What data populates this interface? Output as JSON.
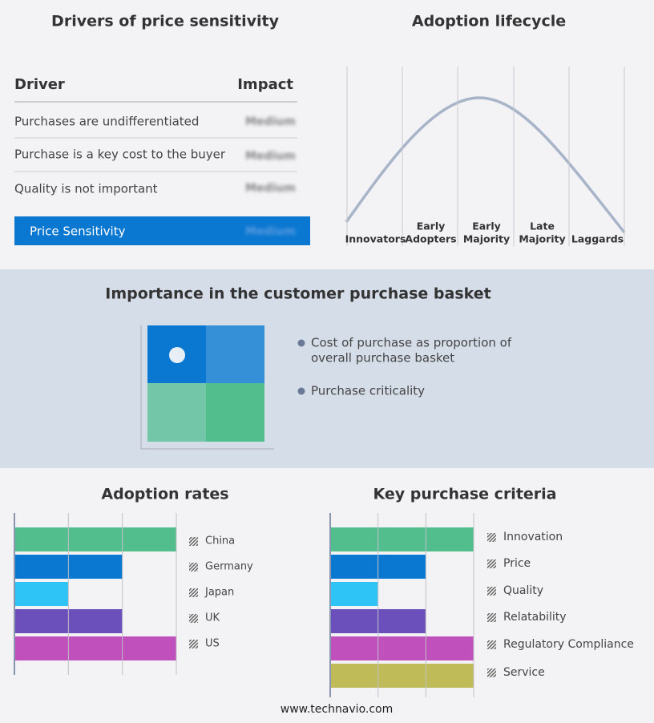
{
  "drivers": {
    "title": "Drivers of price sensitivity",
    "header": [
      "Driver",
      "Impact"
    ],
    "rows": [
      [
        "Purchases are undifferentiated",
        "Medium"
      ],
      [
        "Purchase is a key cost to the buyer",
        "Medium"
      ],
      [
        "Quality is not important",
        "Medium"
      ]
    ],
    "summary": [
      "Price Sensitivity",
      "Medium"
    ]
  },
  "lifecycle": {
    "title": "Adoption lifecycle",
    "stages": [
      [
        "Innovators"
      ],
      [
        "Early",
        "Adopters"
      ],
      [
        "Early",
        "Majority"
      ],
      [
        "Late",
        "Majority"
      ],
      [
        "Laggards"
      ]
    ]
  },
  "basket": {
    "title": "Importance in the customer purchase basket",
    "legend": [
      [
        "Cost of purchase as proportion of",
        "overall purchase basket"
      ],
      [
        "Purchase criticality"
      ]
    ]
  },
  "chart_data": [
    {
      "type": "bar",
      "orientation": "horizontal",
      "title": "Adoption rates",
      "categories": [
        "China",
        "Germany",
        "Japan",
        "UK",
        "US"
      ],
      "values": [
        3,
        2,
        1,
        2,
        3
      ],
      "colors": [
        "#52be8e",
        "#0a77d0",
        "#2ec4f5",
        "#6b4fbb",
        "#c050bb"
      ],
      "xlim": [
        0,
        3
      ],
      "xticks": [
        0,
        1,
        2,
        3
      ],
      "grid": true
    },
    {
      "type": "bar",
      "orientation": "horizontal",
      "title": "Key purchase criteria",
      "categories": [
        "Innovation",
        "Price",
        "Quality",
        "Relatability",
        "Regulatory Compliance",
        "Service"
      ],
      "values": [
        3,
        2,
        1,
        2,
        3,
        3
      ],
      "colors": [
        "#52be8e",
        "#0a77d0",
        "#2ec4f5",
        "#6b4fbb",
        "#c050bb",
        "#bfbb58"
      ],
      "xlim": [
        0,
        3
      ],
      "xticks": [
        0,
        1,
        2,
        3
      ],
      "grid": true
    }
  ],
  "footer": "www.technavio.com"
}
